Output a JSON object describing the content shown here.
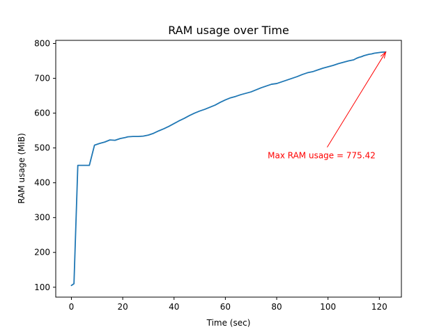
{
  "chart_data": {
    "type": "line",
    "title": "RAM usage over Time",
    "xlabel": "Time (sec)",
    "ylabel": "RAM usage (MiB)",
    "xlim": [
      -6.1,
      128.6
    ],
    "ylim": [
      71.6,
      809.0
    ],
    "xticks": [
      0,
      20,
      40,
      60,
      80,
      100,
      120
    ],
    "yticks": [
      100,
      200,
      300,
      400,
      500,
      600,
      700,
      800
    ],
    "grid": false,
    "legend": "none",
    "series_color": "#1f77b4",
    "series": [
      {
        "x": [
          0,
          1,
          2.5,
          3,
          5,
          7,
          9,
          11,
          13,
          14,
          15,
          17,
          19,
          21,
          22,
          24,
          26,
          28,
          30,
          32,
          34,
          36,
          38,
          40,
          42,
          44,
          46,
          48,
          50,
          52,
          54,
          56,
          58,
          60,
          62,
          64,
          66,
          68,
          70,
          72,
          74,
          76,
          78,
          80,
          82,
          84,
          86,
          88,
          90,
          92,
          94,
          96,
          98,
          100,
          102,
          104,
          106,
          108,
          110,
          111,
          112,
          113,
          114,
          115,
          116,
          117,
          118,
          119,
          120,
          121,
          122,
          122.5
        ],
        "y": [
          105,
          110,
          450,
          450,
          450,
          450,
          508,
          513,
          517,
          520,
          523,
          522,
          527,
          530,
          532,
          533,
          533,
          534,
          537,
          542,
          549,
          555,
          562,
          570,
          578,
          585,
          593,
          600,
          606,
          611,
          617,
          623,
          631,
          638,
          644,
          648,
          653,
          657,
          661,
          667,
          673,
          678,
          683,
          685,
          690,
          695,
          700,
          705,
          711,
          716,
          719,
          724,
          729,
          733,
          737,
          742,
          746,
          750,
          753,
          757,
          760,
          762,
          765,
          767,
          769,
          770,
          772,
          773,
          774,
          775,
          775.42,
          775.42
        ]
      }
    ],
    "annotation": {
      "text": "Max RAM usage = 775.42",
      "x": 122.5,
      "y": 775.42,
      "text_x": 97.5,
      "text_y": 478,
      "color": "#ff0000"
    }
  }
}
